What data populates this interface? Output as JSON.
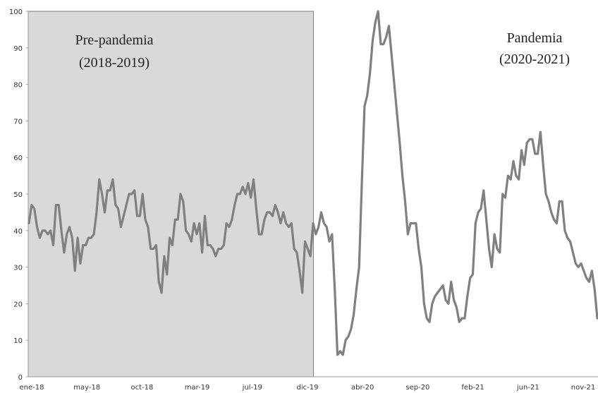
{
  "chart_data": {
    "type": "line",
    "title": "",
    "xlabel": "",
    "ylabel": "",
    "ylim": [
      0,
      100
    ],
    "yticks": [
      0,
      10,
      20,
      30,
      40,
      50,
      60,
      70,
      80,
      90,
      100
    ],
    "x_tick_labels": [
      "ene-18",
      "may-18",
      "oct-18",
      "mar-19",
      "jul-19",
      "dic-19",
      "abr-20",
      "sep-20",
      "feb-21",
      "jun-21",
      "nov-21"
    ],
    "grid": false,
    "legend": "none",
    "line_color": "#808080",
    "shaded_period_color": "#d9d9d9",
    "annotations": [
      {
        "id": "pre",
        "line1": "Pre-pandemia",
        "line2": "(2018-2019)"
      },
      {
        "id": "pan",
        "line1": "Pandemia",
        "line2": "(2020-2021)"
      }
    ],
    "series": [
      {
        "values": [
          42,
          47,
          46,
          41,
          38,
          40,
          40,
          39,
          40,
          36,
          47,
          47,
          40,
          34,
          39,
          41,
          38,
          29,
          38,
          31,
          36,
          36,
          38,
          38,
          39,
          45,
          54,
          50,
          45,
          51,
          51,
          54,
          47,
          46,
          41,
          44,
          47,
          50,
          50,
          51,
          44,
          44,
          50,
          43,
          41,
          35,
          35,
          36,
          26,
          23,
          33,
          28,
          38,
          36,
          43,
          43,
          50,
          48,
          40,
          39,
          37,
          42,
          39,
          42,
          34,
          44,
          36,
          36,
          35,
          33,
          35,
          35,
          36,
          42,
          41,
          43,
          47,
          50,
          50,
          52,
          50,
          53,
          49,
          54,
          46,
          39,
          39,
          43,
          45,
          45,
          44,
          47,
          45,
          42,
          45,
          42,
          41,
          42,
          35,
          34,
          29,
          23,
          37,
          35,
          33,
          42,
          39,
          41,
          45,
          42,
          41,
          37,
          39,
          24,
          6,
          7,
          6,
          10,
          11,
          13,
          17,
          24,
          30,
          53,
          74,
          77,
          83,
          92,
          97,
          100,
          91,
          91,
          93,
          96,
          88,
          80,
          72,
          64,
          55,
          48,
          39,
          42,
          42,
          42,
          35,
          30,
          20,
          16,
          15,
          20,
          22,
          23,
          24,
          25,
          21,
          20,
          26,
          21,
          19,
          15,
          16,
          16,
          22,
          27,
          28,
          42,
          45,
          46,
          51,
          43,
          35,
          30,
          39,
          35,
          34,
          50,
          49,
          55,
          54,
          59,
          55,
          54,
          62,
          58,
          64,
          65,
          65,
          61,
          61,
          67,
          58,
          50,
          48,
          45,
          43,
          42,
          48,
          48,
          40,
          38,
          37,
          34,
          31,
          30,
          31,
          29,
          27,
          26,
          29,
          24,
          16
        ]
      }
    ]
  }
}
